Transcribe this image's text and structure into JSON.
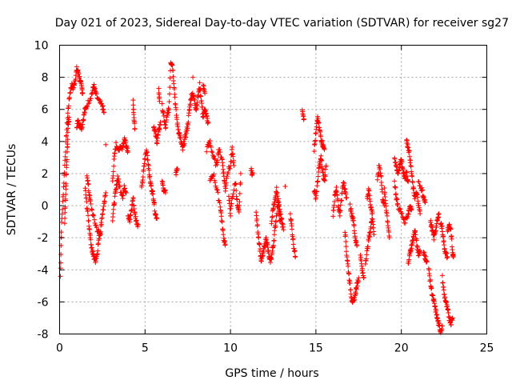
{
  "chart_data": {
    "type": "scatter",
    "title": "Day 021 of 2023, Sidereal Day-to-day VTEC variation (SDTVAR) for receiver sg27",
    "xlabel": "GPS time / hours",
    "ylabel": "SDTVAR / TECUs",
    "xlim": [
      0,
      25
    ],
    "ylim": [
      -8,
      10
    ],
    "xticks": [
      "0",
      "5",
      "10",
      "15",
      "20",
      "25"
    ],
    "yticks": [
      "-8",
      "-6",
      "-4",
      "-2",
      "0",
      "2",
      "4",
      "6",
      "8",
      "10"
    ],
    "grid": true,
    "marker": "+",
    "series_color": "#ff0000",
    "segments": [
      [
        [
          0.05,
          -4.4
        ],
        [
          0.1,
          -1.5
        ],
        [
          0.2,
          0.5
        ],
        [
          0.3,
          2.5
        ],
        [
          0.4,
          4.5
        ],
        [
          0.5,
          6.0
        ],
        [
          0.6,
          7.0
        ],
        [
          0.7,
          7.5
        ],
        [
          0.8,
          7.3
        ],
        [
          0.9,
          7.8
        ],
        [
          1.0,
          8.5
        ],
        [
          1.1,
          8.3
        ],
        [
          1.2,
          7.8
        ],
        [
          1.3,
          7.3
        ],
        [
          1.35,
          7.0
        ]
      ],
      [
        [
          0.3,
          -1.0
        ],
        [
          0.35,
          0.5
        ],
        [
          0.4,
          2.0
        ],
        [
          0.45,
          3.5
        ],
        [
          0.5,
          5.0
        ],
        [
          0.55,
          5.5
        ]
      ],
      [
        [
          1.0,
          5.0
        ],
        [
          1.1,
          5.3
        ],
        [
          1.2,
          5.0
        ],
        [
          1.3,
          4.9
        ],
        [
          1.4,
          5.5
        ],
        [
          1.5,
          6.0
        ]
      ],
      [
        [
          1.5,
          6.0
        ],
        [
          1.7,
          6.5
        ],
        [
          1.9,
          7.0
        ],
        [
          2.0,
          7.5
        ],
        [
          2.1,
          7.0
        ],
        [
          2.3,
          6.5
        ],
        [
          2.5,
          6.2
        ],
        [
          2.6,
          5.8
        ]
      ],
      [
        [
          1.5,
          1.0
        ],
        [
          1.6,
          0.0
        ],
        [
          1.7,
          -1.0
        ],
        [
          1.8,
          -2.0
        ],
        [
          1.9,
          -2.8
        ],
        [
          2.0,
          -3.2
        ],
        [
          2.1,
          -3.4
        ],
        [
          2.2,
          -3.0
        ],
        [
          2.3,
          -2.0
        ],
        [
          2.4,
          -1.5
        ],
        [
          2.5,
          -0.5
        ],
        [
          2.6,
          0.0
        ],
        [
          2.7,
          0.8
        ]
      ],
      [
        [
          1.6,
          2.0
        ],
        [
          1.7,
          1.0
        ],
        [
          1.8,
          0.2
        ],
        [
          2.0,
          -0.8
        ],
        [
          2.2,
          -1.5
        ],
        [
          2.4,
          -1.8
        ]
      ],
      [
        [
          2.7,
          3.8
        ]
      ],
      [
        [
          3.1,
          1.5
        ],
        [
          3.2,
          3.0
        ],
        [
          3.3,
          3.8
        ],
        [
          3.5,
          3.5
        ],
        [
          3.7,
          3.7
        ],
        [
          3.8,
          4.2
        ],
        [
          3.9,
          3.8
        ],
        [
          4.0,
          3.4
        ]
      ],
      [
        [
          3.1,
          -0.8
        ],
        [
          3.2,
          0.2
        ],
        [
          3.3,
          1.0
        ],
        [
          3.4,
          1.8
        ],
        [
          3.5,
          1.2
        ],
        [
          3.7,
          0.6
        ],
        [
          3.8,
          1.2
        ],
        [
          3.9,
          0.8
        ]
      ],
      [
        [
          4.0,
          -0.5
        ],
        [
          4.1,
          -1.0
        ],
        [
          4.2,
          -0.3
        ],
        [
          4.3,
          0.5
        ],
        [
          4.4,
          -0.5
        ],
        [
          4.5,
          -1.0
        ],
        [
          4.6,
          -1.2
        ]
      ],
      [
        [
          4.3,
          6.5
        ],
        [
          4.35,
          5.5
        ],
        [
          4.4,
          4.8
        ]
      ],
      [
        [
          4.8,
          1.0
        ],
        [
          4.9,
          2.0
        ],
        [
          5.0,
          3.0
        ],
        [
          5.1,
          3.5
        ],
        [
          5.2,
          2.5
        ],
        [
          5.3,
          1.5
        ],
        [
          5.4,
          1.0
        ],
        [
          5.5,
          0.5
        ],
        [
          5.6,
          -0.5
        ],
        [
          5.7,
          -0.8
        ]
      ],
      [
        [
          5.5,
          5.0
        ],
        [
          5.6,
          4.5
        ],
        [
          5.7,
          4.0
        ],
        [
          5.8,
          4.6
        ],
        [
          5.9,
          5.2
        ]
      ],
      [
        [
          5.8,
          7.2
        ],
        [
          5.85,
          6.5
        ]
      ],
      [
        [
          6.0,
          6.2
        ],
        [
          6.1,
          5.5
        ],
        [
          6.2,
          4.8
        ],
        [
          6.3,
          5.7
        ],
        [
          6.4,
          6.0
        ],
        [
          6.5,
          9.0
        ],
        [
          6.6,
          8.8
        ],
        [
          6.7,
          7.5
        ],
        [
          6.8,
          6.0
        ],
        [
          6.9,
          5.0
        ],
        [
          7.0,
          4.5
        ],
        [
          7.1,
          4.0
        ],
        [
          7.2,
          3.5
        ],
        [
          7.3,
          4.0
        ],
        [
          7.4,
          4.5
        ],
        [
          7.5,
          5.0
        ],
        [
          7.6,
          6.0
        ],
        [
          7.7,
          6.8
        ],
        [
          7.8,
          7.0
        ],
        [
          7.9,
          6.5
        ],
        [
          8.0,
          6.0
        ],
        [
          8.1,
          6.8
        ],
        [
          8.2,
          7.5
        ],
        [
          8.3,
          6.5
        ],
        [
          8.4,
          5.5
        ],
        [
          8.5,
          6.0
        ],
        [
          8.6,
          5.5
        ],
        [
          8.7,
          5.2
        ]
      ],
      [
        [
          6.0,
          1.5
        ],
        [
          6.1,
          1.0
        ],
        [
          6.2,
          0.8
        ]
      ],
      [
        [
          6.8,
          2.0
        ],
        [
          6.9,
          2.3
        ]
      ],
      [
        [
          7.8,
          8.0
        ]
      ],
      [
        [
          8.4,
          7.5
        ],
        [
          8.5,
          7.0
        ]
      ],
      [
        [
          8.6,
          3.5
        ],
        [
          8.8,
          4.0
        ],
        [
          9.0,
          3.0
        ],
        [
          9.2,
          2.5
        ],
        [
          9.3,
          3.5
        ],
        [
          9.5,
          3.0
        ],
        [
          9.6,
          2.0
        ],
        [
          9.7,
          1.0
        ],
        [
          9.8,
          2.0
        ],
        [
          10.0,
          2.5
        ],
        [
          10.1,
          3.5
        ],
        [
          10.2,
          2.5
        ]
      ],
      [
        [
          8.8,
          1.5
        ],
        [
          9.0,
          2.0
        ],
        [
          9.2,
          1.0
        ],
        [
          9.4,
          0.0
        ],
        [
          9.5,
          -1.0
        ],
        [
          9.6,
          -2.0
        ],
        [
          9.7,
          -2.4
        ]
      ],
      [
        [
          9.9,
          0.5
        ],
        [
          10.0,
          -0.5
        ],
        [
          10.1,
          0.5
        ],
        [
          10.3,
          1.5
        ],
        [
          10.4,
          0.0
        ],
        [
          10.5,
          -0.5
        ],
        [
          10.6,
          2.0
        ]
      ],
      [
        [
          11.2,
          2.2
        ],
        [
          11.3,
          2.0
        ]
      ],
      [
        [
          11.5,
          -0.5
        ],
        [
          11.6,
          -1.5
        ],
        [
          11.7,
          -2.5
        ],
        [
          11.8,
          -3.5
        ],
        [
          11.9,
          -3.0
        ],
        [
          12.0,
          -2.5
        ],
        [
          12.1,
          -2.0
        ],
        [
          12.2,
          -2.8
        ],
        [
          12.3,
          -3.5
        ],
        [
          12.4,
          -3.2
        ],
        [
          12.5,
          -2.5
        ],
        [
          12.6,
          -1.5
        ],
        [
          12.7,
          -0.5
        ],
        [
          12.8,
          0.5
        ],
        [
          12.9,
          -0.5
        ],
        [
          13.0,
          -1.0
        ],
        [
          13.1,
          -1.5
        ]
      ],
      [
        [
          12.4,
          -1.0
        ],
        [
          12.5,
          -0.2
        ],
        [
          12.6,
          0.3
        ],
        [
          12.7,
          1.0
        ],
        [
          12.8,
          0.0
        ],
        [
          12.9,
          -1.0
        ]
      ],
      [
        [
          13.2,
          1.2
        ]
      ],
      [
        [
          13.5,
          -0.5
        ],
        [
          13.6,
          -1.5
        ],
        [
          13.7,
          -2.5
        ],
        [
          13.8,
          -3.2
        ]
      ],
      [
        [
          14.2,
          6.1
        ],
        [
          14.3,
          5.4
        ]
      ],
      [
        [
          14.9,
          3.5
        ],
        [
          15.0,
          4.5
        ],
        [
          15.1,
          5.5
        ],
        [
          15.2,
          4.8
        ],
        [
          15.3,
          4.2
        ],
        [
          15.4,
          3.8
        ],
        [
          15.5,
          3.5
        ]
      ],
      [
        [
          14.9,
          1.0
        ],
        [
          15.0,
          0.5
        ],
        [
          15.1,
          1.5
        ],
        [
          15.2,
          2.5
        ],
        [
          15.3,
          3.0
        ],
        [
          15.4,
          2.0
        ],
        [
          15.5,
          1.5
        ],
        [
          15.6,
          2.5
        ]
      ],
      [
        [
          16.0,
          -0.5
        ],
        [
          16.1,
          0.5
        ],
        [
          16.2,
          1.0
        ],
        [
          16.3,
          0.0
        ],
        [
          16.4,
          -0.5
        ],
        [
          16.5,
          0.5
        ],
        [
          16.6,
          1.5
        ],
        [
          16.7,
          1.0
        ],
        [
          16.8,
          0.5
        ]
      ],
      [
        [
          16.7,
          -1.5
        ],
        [
          16.8,
          -3.0
        ],
        [
          16.9,
          -4.0
        ],
        [
          17.0,
          -5.0
        ],
        [
          17.1,
          -5.8
        ],
        [
          17.2,
          -6.1
        ],
        [
          17.3,
          -5.5
        ],
        [
          17.4,
          -5.0
        ],
        [
          17.5,
          -4.5
        ]
      ],
      [
        [
          17.0,
          0.0
        ],
        [
          17.1,
          -0.5
        ],
        [
          17.2,
          -1.0
        ],
        [
          17.3,
          -2.0
        ],
        [
          17.4,
          -2.5
        ]
      ],
      [
        [
          17.6,
          -3.0
        ],
        [
          17.7,
          -4.0
        ],
        [
          17.8,
          -4.5
        ]
      ],
      [
        [
          17.9,
          -3.5
        ],
        [
          18.0,
          -2.8
        ],
        [
          18.1,
          -2.0
        ],
        [
          18.2,
          -1.5
        ],
        [
          18.3,
          -0.5
        ]
      ],
      [
        [
          18.0,
          0.5
        ],
        [
          18.1,
          1.0
        ],
        [
          18.2,
          0.0
        ],
        [
          18.3,
          -0.5
        ],
        [
          18.4,
          -1.8
        ]
      ],
      [
        [
          18.6,
          1.5
        ],
        [
          18.7,
          2.5
        ],
        [
          18.8,
          2.0
        ],
        [
          18.9,
          0.5
        ],
        [
          19.0,
          0.0
        ]
      ],
      [
        [
          19.0,
          1.0
        ],
        [
          19.1,
          0.0
        ],
        [
          19.2,
          -1.0
        ],
        [
          19.3,
          -2.0
        ]
      ],
      [
        [
          19.6,
          2.8
        ],
        [
          19.7,
          2.5
        ],
        [
          19.8,
          2.0
        ],
        [
          19.9,
          2.5
        ],
        [
          20.0,
          2.8
        ],
        [
          20.1,
          2.2
        ],
        [
          20.2,
          1.8
        ],
        [
          20.3,
          2.0
        ],
        [
          20.4,
          1.5
        ]
      ],
      [
        [
          19.6,
          1.5
        ],
        [
          19.7,
          0.5
        ],
        [
          19.8,
          0.0
        ],
        [
          20.0,
          -0.5
        ],
        [
          20.2,
          -1.0
        ],
        [
          20.4,
          -0.5
        ],
        [
          20.5,
          0.0
        ],
        [
          20.6,
          -0.2
        ]
      ],
      [
        [
          20.3,
          4.0
        ],
        [
          20.4,
          3.7
        ],
        [
          20.5,
          3.0
        ],
        [
          20.6,
          2.0
        ],
        [
          20.7,
          1.0
        ],
        [
          20.8,
          0.5
        ],
        [
          20.9,
          0.8
        ],
        [
          21.0,
          0.0
        ],
        [
          21.1,
          -0.5
        ]
      ],
      [
        [
          20.4,
          -3.5
        ],
        [
          20.5,
          -3.0
        ],
        [
          20.6,
          -2.5
        ],
        [
          20.7,
          -2.0
        ],
        [
          20.8,
          -1.5
        ],
        [
          20.9,
          -2.5
        ],
        [
          21.0,
          -3.0
        ],
        [
          21.1,
          -2.8
        ]
      ],
      [
        [
          21.0,
          1.5
        ],
        [
          21.2,
          1.0
        ],
        [
          21.3,
          0.5
        ],
        [
          21.4,
          0.2
        ]
      ],
      [
        [
          21.3,
          -3.0
        ],
        [
          21.4,
          -3.2
        ],
        [
          21.5,
          -3.5
        ]
      ],
      [
        [
          21.6,
          -4.0
        ],
        [
          21.7,
          -4.8
        ],
        [
          21.8,
          -5.5
        ],
        [
          21.9,
          -6.0
        ],
        [
          22.0,
          -6.5
        ],
        [
          22.1,
          -7.0
        ],
        [
          22.2,
          -7.5
        ],
        [
          22.3,
          -7.8
        ],
        [
          22.4,
          -7.5
        ]
      ],
      [
        [
          21.7,
          -1.0
        ],
        [
          21.8,
          -1.5
        ],
        [
          21.9,
          -2.0
        ],
        [
          22.0,
          -1.5
        ],
        [
          22.1,
          -1.0
        ],
        [
          22.2,
          -0.5
        ]
      ],
      [
        [
          22.3,
          -1.0
        ],
        [
          22.4,
          -1.5
        ],
        [
          22.5,
          -2.5
        ],
        [
          22.6,
          -3.0
        ],
        [
          22.7,
          -3.2
        ]
      ],
      [
        [
          22.4,
          -4.5
        ],
        [
          22.5,
          -5.5
        ],
        [
          22.6,
          -6.0
        ],
        [
          22.7,
          -6.5
        ],
        [
          22.8,
          -7.0
        ],
        [
          22.9,
          -7.3
        ],
        [
          23.0,
          -7.0
        ]
      ],
      [
        [
          22.7,
          -1.5
        ],
        [
          22.8,
          -1.2
        ],
        [
          22.9,
          -1.5
        ],
        [
          23.0,
          -3.0
        ],
        [
          23.05,
          -3.2
        ]
      ]
    ]
  }
}
